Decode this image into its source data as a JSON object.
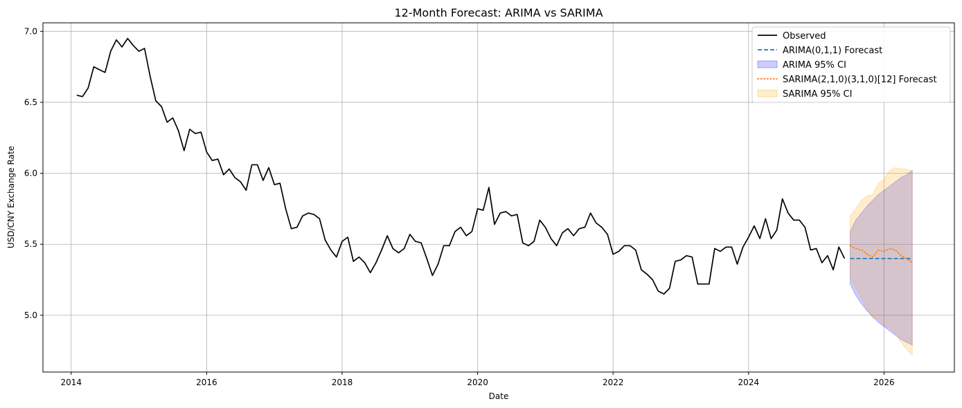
{
  "chart_data": {
    "type": "line",
    "title": "12-Month Forecast: ARIMA vs SARIMA",
    "xlabel": "Date",
    "ylabel": "USD/CNY Exchange Rate",
    "xlim": [
      "2013-08-01",
      "2027-01-15"
    ],
    "ylim": [
      4.6,
      7.06
    ],
    "x_ticks": [
      "2014",
      "2016",
      "2018",
      "2020",
      "2022",
      "2024",
      "2026"
    ],
    "y_ticks": [
      "5.0",
      "5.5",
      "6.0",
      "6.5",
      "7.0"
    ],
    "grid": true,
    "legend_position": "top-right",
    "colors": {
      "observed": "#000000",
      "arima": "#1f77b4",
      "arima_ci": "#0000ff",
      "sarima": "#ff7f0e",
      "sarima_ci": "#ffa500"
    },
    "legend": [
      {
        "label": "Observed",
        "kind": "line"
      },
      {
        "label": "ARIMA(0,1,1) Forecast",
        "kind": "dashed"
      },
      {
        "label": "ARIMA 95% CI",
        "kind": "patch-arima"
      },
      {
        "label": "SARIMA(2,1,0)(3,1,0)[12] Forecast",
        "kind": "dotted"
      },
      {
        "label": "SARIMA 95% CI",
        "kind": "patch-sarima"
      }
    ],
    "observed": {
      "start": "2014-02",
      "values": [
        6.55,
        6.54,
        6.6,
        6.75,
        6.73,
        6.71,
        6.86,
        6.94,
        6.89,
        6.95,
        6.9,
        6.86,
        6.88,
        6.68,
        6.51,
        6.47,
        6.36,
        6.39,
        6.3,
        6.16,
        6.31,
        6.28,
        6.29,
        6.15,
        6.09,
        6.1,
        5.99,
        6.03,
        5.97,
        5.94,
        5.88,
        6.06,
        6.06,
        5.95,
        6.04,
        5.92,
        5.93,
        5.75,
        5.61,
        5.62,
        5.7,
        5.72,
        5.71,
        5.68,
        5.53,
        5.46,
        5.41,
        5.52,
        5.55,
        5.38,
        5.41,
        5.37,
        5.3,
        5.37,
        5.46,
        5.56,
        5.47,
        5.44,
        5.47,
        5.57,
        5.52,
        5.51,
        5.4,
        5.28,
        5.36,
        5.49,
        5.49,
        5.59,
        5.62,
        5.56,
        5.59,
        5.75,
        5.74,
        5.9,
        5.64,
        5.72,
        5.73,
        5.7,
        5.71,
        5.51,
        5.49,
        5.52,
        5.67,
        5.62,
        5.54,
        5.49,
        5.58,
        5.61,
        5.56,
        5.61,
        5.62,
        5.72,
        5.65,
        5.62,
        5.57,
        5.43,
        5.45,
        5.49,
        5.49,
        5.46,
        5.32,
        5.29,
        5.25,
        5.17,
        5.15,
        5.19,
        5.38,
        5.39,
        5.42,
        5.41,
        5.22,
        5.22,
        5.22,
        5.47,
        5.45,
        5.48,
        5.48,
        5.36,
        5.48,
        5.55,
        5.63,
        5.54,
        5.68,
        5.54,
        5.6,
        5.82,
        5.72,
        5.67,
        5.67,
        5.62,
        5.46,
        5.47,
        5.37,
        5.42,
        5.32,
        5.48,
        5.4
      ]
    },
    "forecast_start": "2025-07",
    "arima_forecast": [
      5.4,
      5.4,
      5.4,
      5.4,
      5.4,
      5.4,
      5.4,
      5.4,
      5.4,
      5.4,
      5.4,
      5.4
    ],
    "arima_ci_upper": [
      5.59,
      5.67,
      5.72,
      5.77,
      5.81,
      5.85,
      5.88,
      5.91,
      5.94,
      5.97,
      5.99,
      6.02
    ],
    "arima_ci_lower": [
      5.22,
      5.14,
      5.08,
      5.03,
      4.99,
      4.95,
      4.92,
      4.89,
      4.86,
      4.83,
      4.81,
      4.79
    ],
    "sarima_forecast": [
      5.49,
      5.47,
      5.46,
      5.43,
      5.41,
      5.46,
      5.45,
      5.47,
      5.46,
      5.42,
      5.4,
      5.37
    ],
    "sarima_ci_upper": [
      5.7,
      5.75,
      5.81,
      5.84,
      5.85,
      5.93,
      5.96,
      6.02,
      6.04,
      6.03,
      6.03,
      6.02
    ],
    "sarima_ci_lower": [
      5.27,
      5.19,
      5.12,
      5.04,
      4.98,
      4.97,
      4.93,
      4.91,
      4.87,
      4.81,
      4.76,
      4.72
    ]
  }
}
